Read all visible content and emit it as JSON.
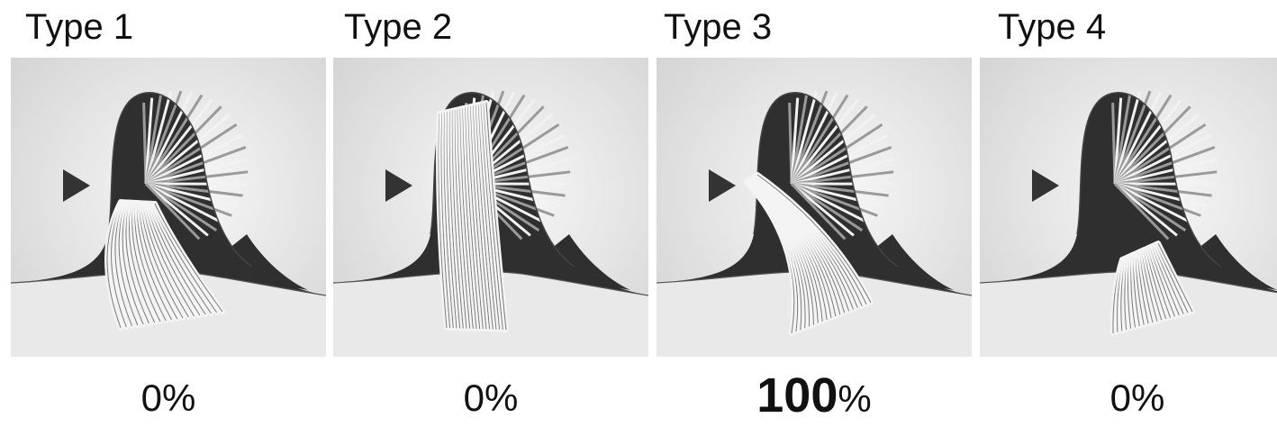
{
  "panels": [
    {
      "title": "Type 1",
      "percent_number": "0",
      "percent_sign": "%",
      "highlight": false,
      "variant": "curl"
    },
    {
      "title": "Type 2",
      "percent_number": "0",
      "percent_sign": "%",
      "highlight": false,
      "variant": "straight"
    },
    {
      "title": "Type 3",
      "percent_number": "100",
      "percent_sign": "%",
      "highlight": true,
      "variant": "diagonal"
    },
    {
      "title": "Type 4",
      "percent_number": "0",
      "percent_sign": "%",
      "highlight": false,
      "variant": "short"
    }
  ],
  "icons": {
    "pointer": "triangle-pointer-icon"
  },
  "colors": {
    "background": "#e6e6e6",
    "dark_fin": "#2f2f2f",
    "fan": "#f4f4f4",
    "stripe": "#7a7a7a"
  }
}
